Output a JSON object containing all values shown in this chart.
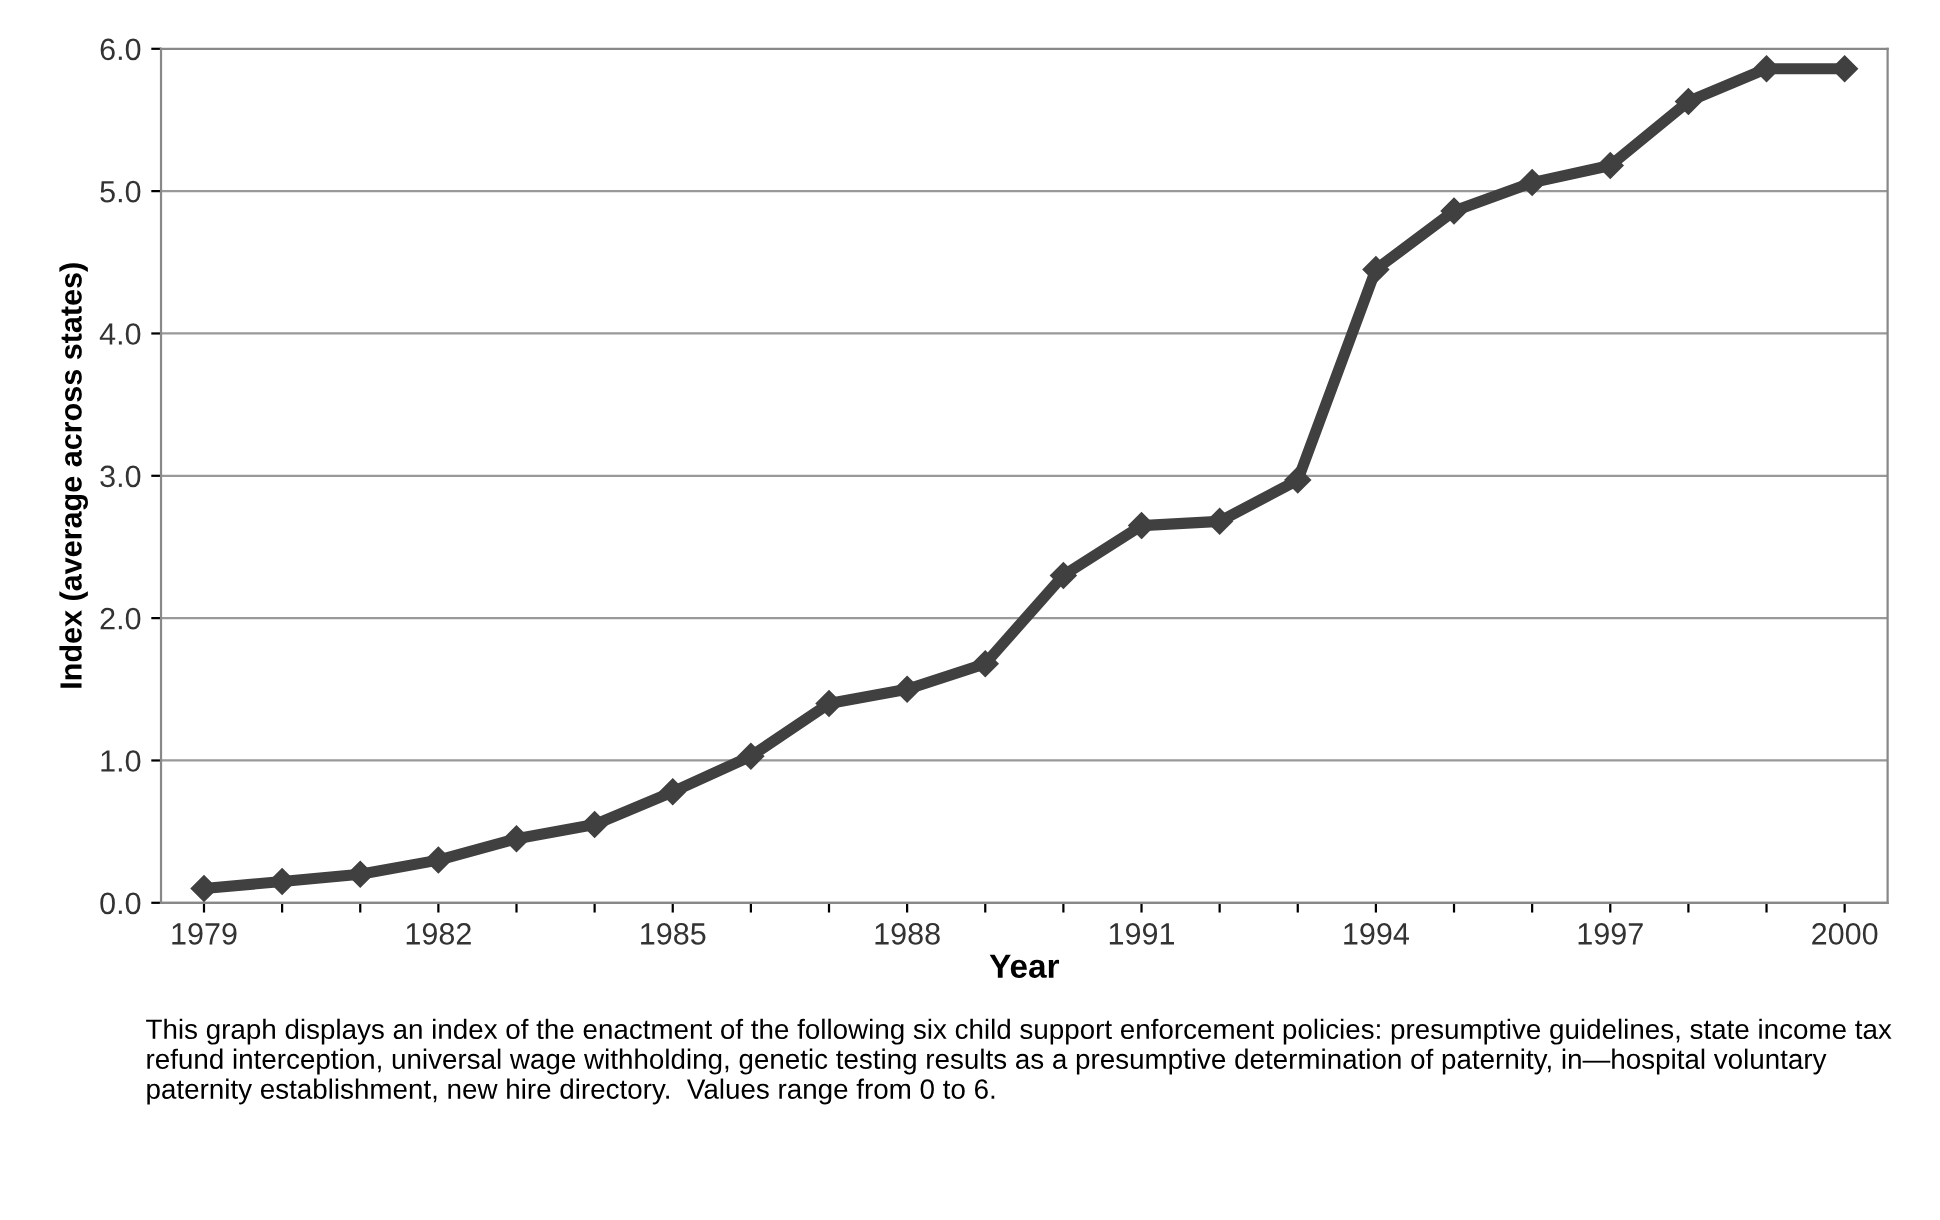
{
  "chart_data": {
    "type": "line",
    "xlabel": "Year",
    "ylabel": "Index (average across states)",
    "categories": [
      "1979",
      null,
      null,
      "1982",
      null,
      null,
      "1985",
      null,
      null,
      "1988",
      null,
      null,
      "1991",
      null,
      null,
      "1994",
      null,
      null,
      "1997",
      null,
      null,
      "2000"
    ],
    "series": [
      {
        "color": "#404040",
        "values": [
          0.1,
          0.15,
          0.2,
          0.3,
          0.45,
          0.55,
          0.78,
          1.03,
          1.4,
          1.5,
          1.68,
          2.3,
          2.65,
          2.68,
          2.97,
          4.45,
          4.86,
          5.06,
          5.18,
          5.63,
          5.86,
          5.86
        ]
      }
    ],
    "ylim": [
      0,
      6
    ],
    "yticks": [
      {
        "value": 0,
        "label": "0.0"
      },
      {
        "value": 1,
        "label": "1.0"
      },
      {
        "value": 2,
        "label": "2.0"
      },
      {
        "value": 3,
        "label": "3.0"
      },
      {
        "value": 4,
        "label": "4.0"
      },
      {
        "value": 5,
        "label": "5.0"
      },
      {
        "value": 6,
        "label": "6.0"
      }
    ],
    "grid": "y",
    "marker": "diamond",
    "line_style": "solid",
    "annotations": [
      "This graph displays an index of the enactment of the following six child support enforcement policies: presumptive guidelines, state income tax refund interception, universal wage withholding, genetic testing results as a presumptive determination of paternity, in—hospital voluntary paternity establishment, new hire directory.  Values range from 0 to 6."
    ]
  }
}
